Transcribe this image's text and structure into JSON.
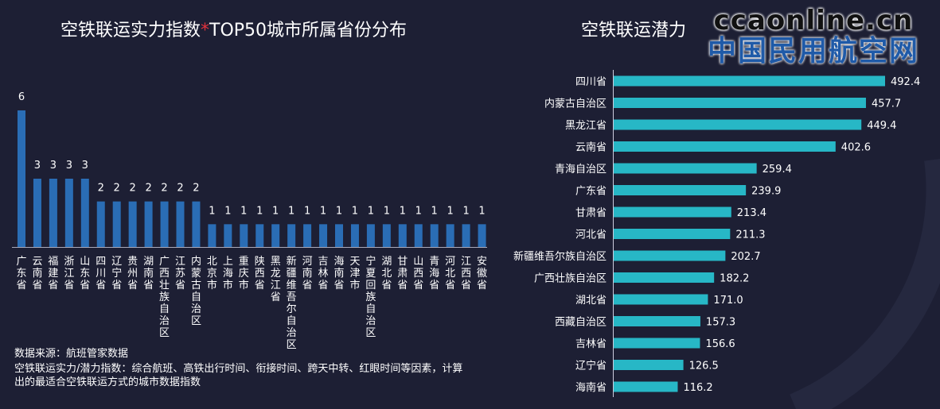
{
  "chart_data": [
    {
      "type": "bar",
      "title_prefix": "空铁联运实力指数",
      "title_star": "*",
      "title_suffix": "TOP50城市所属省份分布",
      "categories": [
        "广东省",
        "云南省",
        "福建省",
        "浙江省",
        "山东省",
        "四川省",
        "辽宁省",
        "贵州省",
        "湖南省",
        "广西壮族自治区",
        "江苏省",
        "内蒙古自治区",
        "北京市",
        "上海市",
        "重庆市",
        "陕西省",
        "黑龙江省",
        "新疆维吾尔自治区",
        "河南省",
        "吉林省",
        "海南省",
        "天津市",
        "宁夏回族自治区",
        "湖北省",
        "甘肃省",
        "山西省",
        "青海省",
        "河北省",
        "江西省",
        "安徽省"
      ],
      "values": [
        6,
        3,
        3,
        3,
        3,
        2,
        2,
        2,
        2,
        2,
        2,
        2,
        1,
        1,
        1,
        1,
        1,
        1,
        1,
        1,
        1,
        1,
        1,
        1,
        1,
        1,
        1,
        1,
        1,
        1
      ],
      "ylim": [
        0,
        6
      ],
      "grid": false,
      "color": "#2a6db5"
    },
    {
      "type": "bar",
      "orientation": "horizontal",
      "title": "空铁联运潜力",
      "categories": [
        "四川省",
        "内蒙古自治区",
        "黑龙江省",
        "云南省",
        "青海自治区",
        "广东省",
        "甘肃省",
        "河北省",
        "新疆维吾尔族自治区",
        "广西壮族自治区",
        "湖北省",
        "西藏自治区",
        "吉林省",
        "辽宁省",
        "海南省"
      ],
      "values": [
        492.4,
        457.7,
        449.4,
        402.6,
        259.4,
        239.9,
        213.4,
        211.3,
        202.7,
        182.2,
        171.0,
        157.3,
        156.6,
        126.5,
        116.2
      ],
      "xlim": [
        0,
        492.4
      ],
      "grid": false,
      "color": "#27b7c6"
    }
  ],
  "notes": [
    "数据来源：航班管家数据",
    "空铁联运实力/潜力指数：综合航班、高铁出行时间、衔接时间、跨天中转、红眼时间等因素，计算",
    "出的最适合空铁联运方式的城市数据指数"
  ],
  "watermark": {
    "line1": "ccaonline.cn",
    "line2": "中国民用航空网"
  }
}
